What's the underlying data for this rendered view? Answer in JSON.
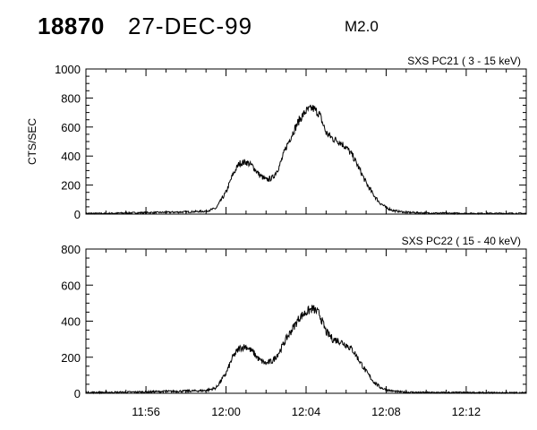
{
  "header": {
    "event_id": "18870",
    "date": "27-DEC-99",
    "flare_class": "M2.0"
  },
  "chart_data": [
    {
      "type": "line",
      "title": "SXS PC21   (  3 - 15 keV)",
      "ylabel": "CTS/SEC",
      "xlabel": "",
      "xlim": [
        "11:53",
        "12:15"
      ],
      "ylim": [
        0,
        1000
      ],
      "y_ticks": [
        0,
        200,
        400,
        600,
        800,
        1000
      ],
      "x_ticks": [
        "11:56",
        "12:00",
        "12:04",
        "12:08",
        "12:12"
      ],
      "x": [
        "11:53",
        "11:54",
        "11:55",
        "11:56",
        "11:57",
        "11:58",
        "11:59",
        "11:59:30",
        "12:00",
        "12:00:20",
        "12:00:40",
        "12:01",
        "12:01:20",
        "12:01:40",
        "12:02",
        "12:02:20",
        "12:02:40",
        "12:03",
        "12:03:20",
        "12:03:40",
        "12:04",
        "12:04:20",
        "12:04:40",
        "12:05",
        "12:05:20",
        "12:05:40",
        "12:06",
        "12:06:20",
        "12:06:40",
        "12:07",
        "12:07:20",
        "12:07:40",
        "12:08",
        "12:08:20",
        "12:08:40",
        "12:09",
        "12:09:30",
        "12:10",
        "12:11",
        "12:12",
        "12:13",
        "12:14",
        "12:15"
      ],
      "values": [
        5,
        5,
        8,
        10,
        12,
        15,
        20,
        40,
        150,
        270,
        350,
        360,
        330,
        270,
        235,
        250,
        330,
        460,
        560,
        650,
        710,
        730,
        690,
        560,
        520,
        500,
        460,
        400,
        310,
        215,
        140,
        80,
        45,
        25,
        18,
        12,
        10,
        8,
        6,
        5,
        5,
        5,
        5
      ]
    },
    {
      "type": "line",
      "title": "SXS PC22   ( 15 - 40 keV)",
      "ylabel": "",
      "xlabel": "",
      "xlim": [
        "11:53",
        "12:15"
      ],
      "ylim": [
        0,
        800
      ],
      "y_ticks": [
        0,
        200,
        400,
        600,
        800
      ],
      "x_ticks": [
        "11:56",
        "12:00",
        "12:04",
        "12:08",
        "12:12"
      ],
      "x": [
        "11:53",
        "11:54",
        "11:55",
        "11:56",
        "11:57",
        "11:58",
        "11:59",
        "11:59:30",
        "12:00",
        "12:00:20",
        "12:00:40",
        "12:01",
        "12:01:20",
        "12:01:40",
        "12:02",
        "12:02:20",
        "12:02:40",
        "12:03",
        "12:03:20",
        "12:03:40",
        "12:04",
        "12:04:20",
        "12:04:40",
        "12:05",
        "12:05:20",
        "12:05:40",
        "12:06",
        "12:06:20",
        "12:06:40",
        "12:07",
        "12:07:20",
        "12:07:40",
        "12:08",
        "12:08:20",
        "12:08:40",
        "12:09",
        "12:09:30",
        "12:10",
        "12:11",
        "12:12",
        "12:13",
        "12:14",
        "12:15"
      ],
      "values": [
        5,
        5,
        6,
        8,
        10,
        12,
        15,
        30,
        110,
        200,
        250,
        260,
        230,
        185,
        165,
        180,
        230,
        300,
        360,
        420,
        450,
        470,
        440,
        340,
        300,
        290,
        270,
        240,
        180,
        120,
        70,
        35,
        20,
        12,
        8,
        6,
        5,
        4,
        4,
        4,
        3,
        3,
        3
      ]
    }
  ]
}
